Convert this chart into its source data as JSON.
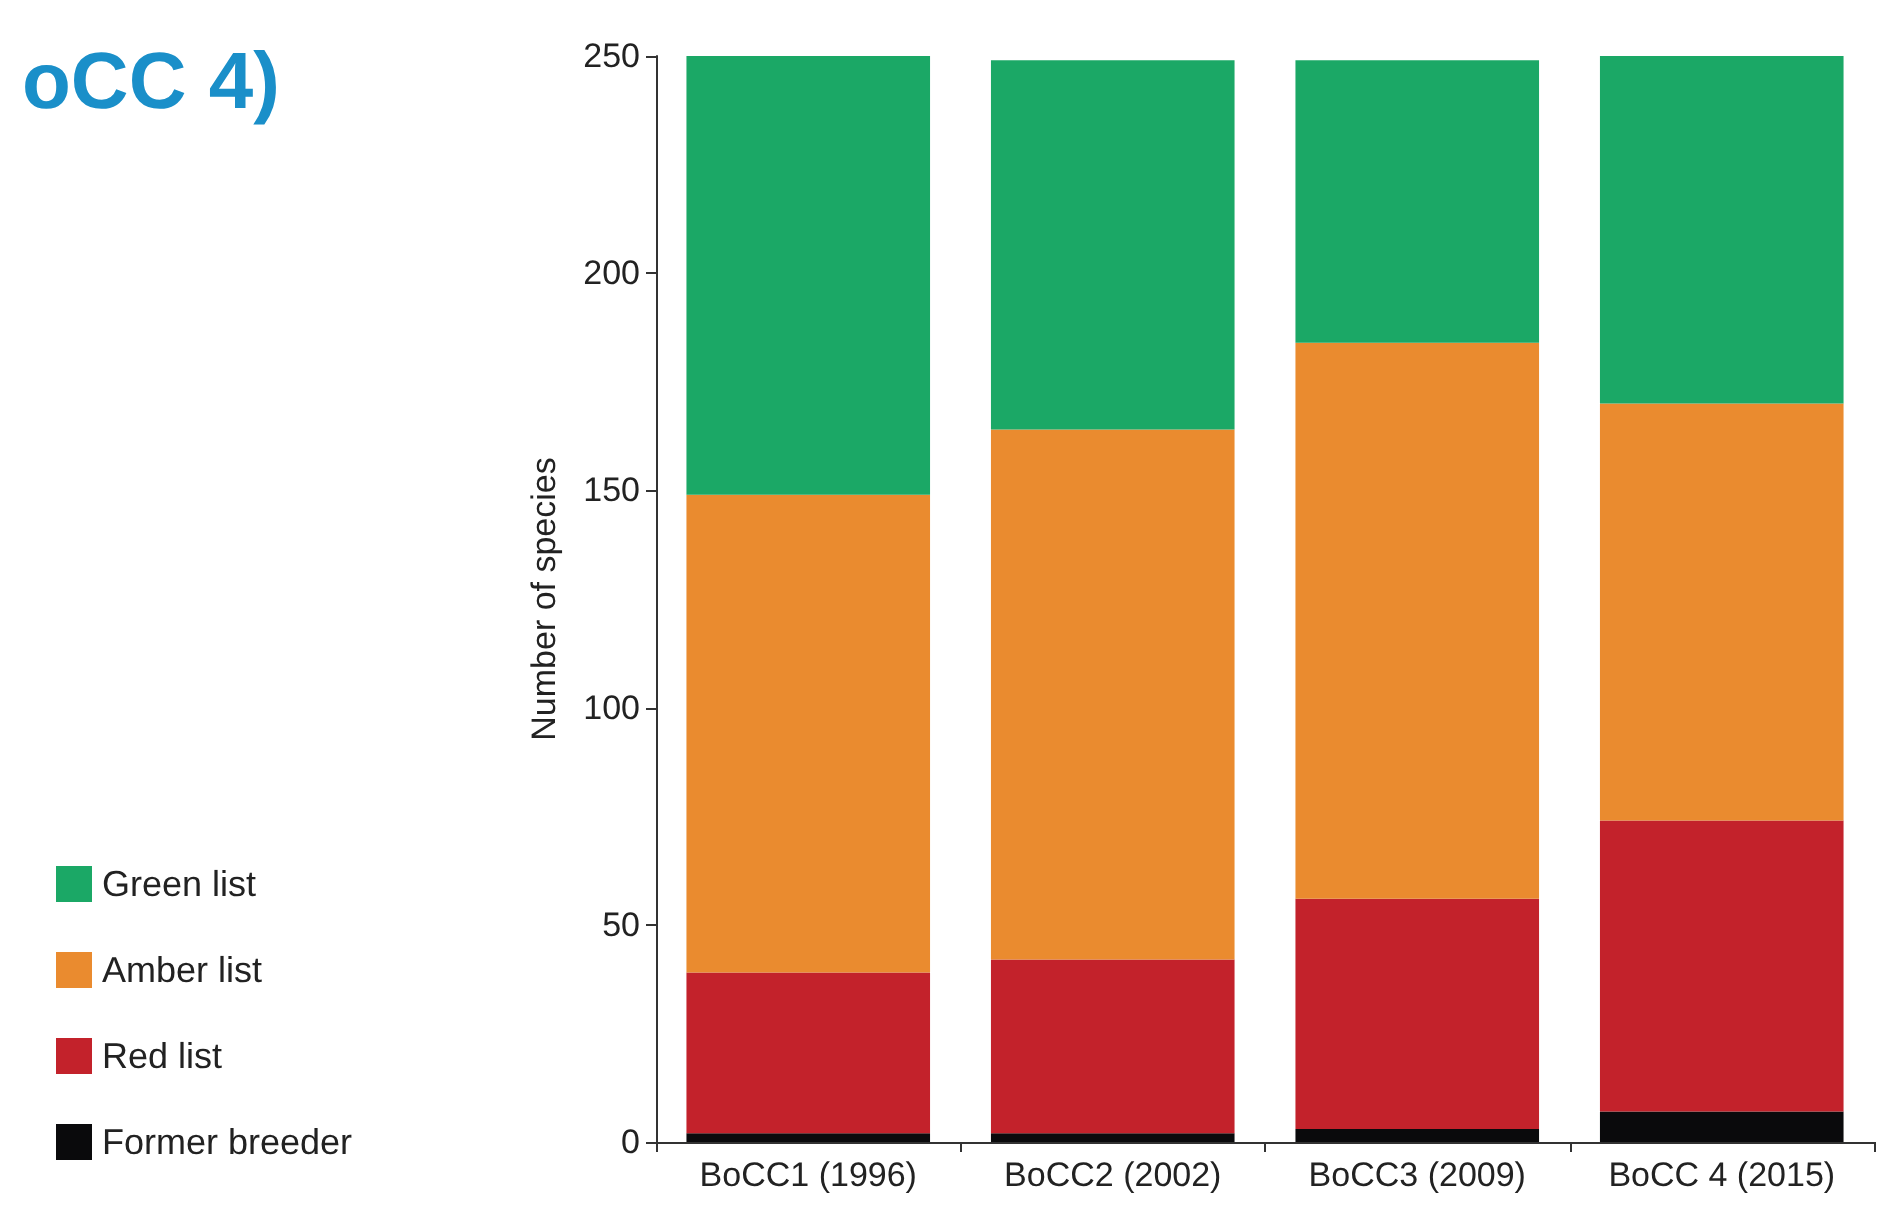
{
  "chart_data": {
    "type": "bar",
    "title": "oCC 4)",
    "ylabel": "Number of species",
    "categories": [
      "BoCC1 (1996)",
      "BoCC2 (2002)",
      "BoCC3 (2009)",
      "BoCC 4 (2015)"
    ],
    "stacked": true,
    "series": [
      {
        "name": "Former breeder",
        "color": "#0a0a0c",
        "values": [
          2,
          2,
          3,
          7
        ]
      },
      {
        "name": "Red list",
        "color": "#c3222b",
        "values": [
          37,
          40,
          53,
          67
        ]
      },
      {
        "name": "Amber list",
        "color": "#ea8b2f",
        "values": [
          110,
          122,
          128,
          96
        ]
      },
      {
        "name": "Green list",
        "color": "#1ba866",
        "values": [
          101,
          85,
          65,
          80
        ]
      }
    ],
    "ylim": [
      0,
      250
    ],
    "yticks": [
      0,
      50,
      100,
      150,
      200,
      250
    ],
    "grid": false,
    "legend": "left"
  }
}
